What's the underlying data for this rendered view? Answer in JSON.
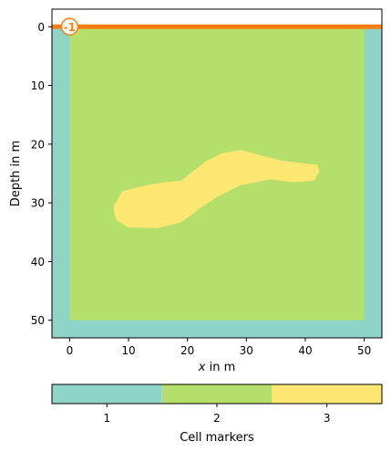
{
  "chart_data": {
    "type": "heatmap",
    "title": "",
    "xlabel_var": "x",
    "xlabel_unit": " in m",
    "ylabel": "Depth in m",
    "xlim": [
      -3,
      53
    ],
    "ylim": [
      53,
      -3
    ],
    "x_ticks": [
      0,
      10,
      20,
      30,
      40,
      50
    ],
    "y_ticks": [
      0,
      10,
      20,
      30,
      40,
      50
    ],
    "regions": [
      {
        "marker": 1,
        "label": "1",
        "color": "#8fd5c7",
        "extent": {
          "x": [
            -3,
            53
          ],
          "y": [
            0,
            53
          ]
        }
      },
      {
        "marker": 2,
        "label": "2",
        "color": "#b4df6a",
        "extent": {
          "x": [
            0,
            50
          ],
          "y": [
            0,
            50
          ]
        }
      },
      {
        "marker": 3,
        "label": "3",
        "color": "#fde874",
        "outline": [
          [
            7.5,
            30.5
          ],
          [
            9,
            28
          ],
          [
            13,
            27
          ],
          [
            16,
            26.5
          ],
          [
            19,
            26.2
          ],
          [
            20.5,
            25
          ],
          [
            23,
            23
          ],
          [
            26,
            21.5
          ],
          [
            29,
            21
          ],
          [
            32,
            21.8
          ],
          [
            36,
            22.8
          ],
          [
            40,
            23.3
          ],
          [
            42,
            23.5
          ],
          [
            42.4,
            24.6
          ],
          [
            41.5,
            26.2
          ],
          [
            38,
            26.5
          ],
          [
            34,
            26
          ],
          [
            29,
            27
          ],
          [
            25,
            29
          ],
          [
            22,
            31
          ],
          [
            19,
            33.3
          ],
          [
            15,
            34.3
          ],
          [
            10,
            34.2
          ],
          [
            8,
            33
          ],
          [
            7.5,
            31.5
          ]
        ]
      }
    ],
    "boundary": {
      "marker": "-1",
      "color": "#ff7f0e",
      "y": 0,
      "x": [
        -3,
        53
      ]
    },
    "colorbar": {
      "label": "Cell markers",
      "ticks": [
        "1",
        "2",
        "3"
      ],
      "colors": [
        "#8fd5c7",
        "#b4df6a",
        "#fde874"
      ]
    }
  }
}
